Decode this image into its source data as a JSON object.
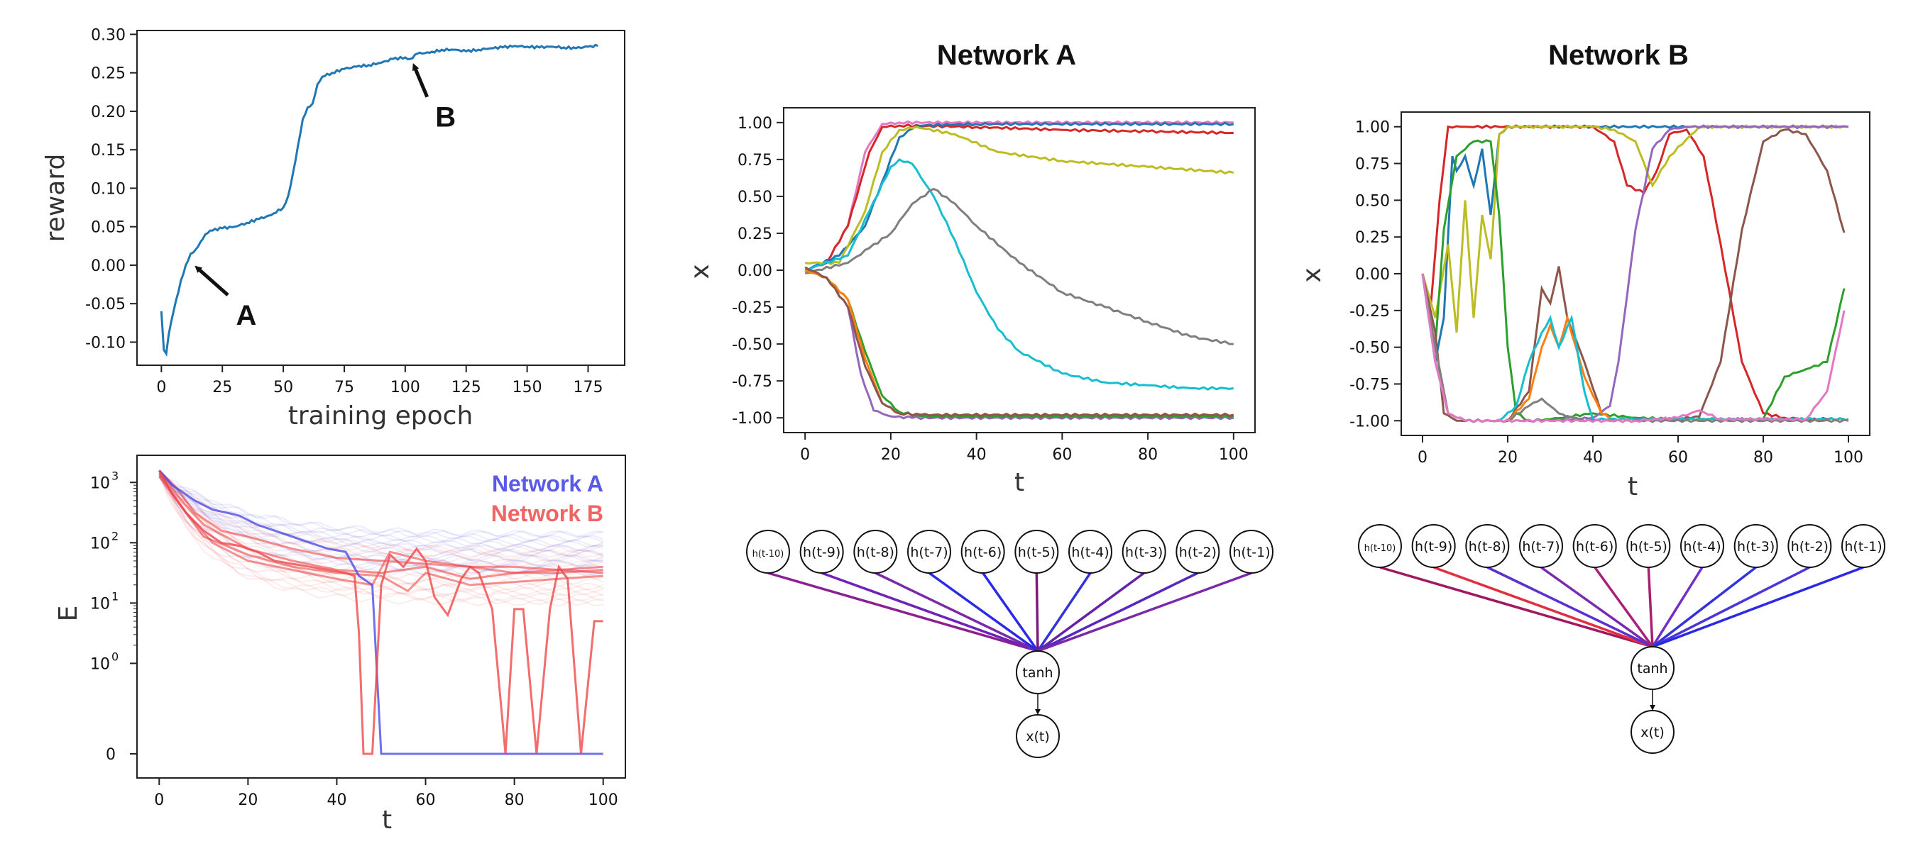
{
  "chart_data": [
    {
      "id": "reward",
      "type": "line",
      "xlabel": "training epoch",
      "ylabel": "reward",
      "xlim": [
        -10,
        190
      ],
      "ylim": [
        -0.13,
        0.305
      ],
      "xticks": [
        "0",
        "25",
        "50",
        "75",
        "100",
        "125",
        "150",
        "175"
      ],
      "yticks": [
        "-0.10",
        "-0.05",
        "0.00",
        "0.05",
        "0.10",
        "0.15",
        "0.20",
        "0.25",
        "0.30"
      ],
      "color": "#1f77b4",
      "x": [
        0,
        1,
        2,
        3,
        5,
        8,
        10,
        12,
        14,
        16,
        18,
        20,
        25,
        30,
        35,
        40,
        45,
        50,
        52,
        54,
        56,
        58,
        60,
        62,
        64,
        66,
        70,
        75,
        80,
        85,
        90,
        95,
        100,
        102,
        105,
        110,
        115,
        120,
        125,
        130,
        135,
        140,
        145,
        150,
        155,
        160,
        165,
        170,
        175,
        179
      ],
      "y": [
        -0.06,
        -0.11,
        -0.115,
        -0.09,
        -0.06,
        -0.02,
        0.0,
        0.015,
        0.02,
        0.03,
        0.04,
        0.045,
        0.048,
        0.05,
        0.055,
        0.06,
        0.065,
        0.075,
        0.09,
        0.12,
        0.155,
        0.19,
        0.205,
        0.21,
        0.235,
        0.245,
        0.25,
        0.255,
        0.258,
        0.26,
        0.263,
        0.268,
        0.27,
        0.268,
        0.275,
        0.276,
        0.28,
        0.28,
        0.278,
        0.28,
        0.282,
        0.283,
        0.285,
        0.284,
        0.283,
        0.284,
        0.283,
        0.282,
        0.284,
        0.285
      ],
      "annotations": [
        {
          "label": "A",
          "x": 13,
          "y": 0.0
        },
        {
          "label": "B",
          "x": 102,
          "y": 0.262
        }
      ]
    },
    {
      "id": "energy",
      "type": "line",
      "yscale": "log",
      "xlabel": "t",
      "ylabel": "E",
      "xlim": [
        -5,
        105
      ],
      "xticks": [
        "0",
        "20",
        "40",
        "60",
        "80",
        "100"
      ],
      "yticks": [
        {
          "text": "10",
          "sup": "3"
        },
        {
          "text": "10",
          "sup": "2"
        },
        {
          "text": "10",
          "sup": "1"
        },
        {
          "text": "10",
          "sup": "0"
        },
        {
          "text": "0",
          "sup": ""
        }
      ],
      "legend": [
        "Network A",
        "Network B"
      ],
      "legend_position": "top-right",
      "colors": {
        "A": "#4d4de6",
        "B": "#f04848"
      },
      "series": [
        {
          "name": "Network A",
          "x": [
            0,
            3,
            8,
            12,
            18,
            22,
            28,
            32,
            38,
            42,
            45,
            48,
            50,
            55,
            60,
            70,
            80,
            90,
            100
          ],
          "logE": [
            3.2,
            2.95,
            2.7,
            2.55,
            2.45,
            2.3,
            2.15,
            2.05,
            1.9,
            1.85,
            1.45,
            1.3,
            -1.5,
            -1.5,
            -1.5,
            -1.5,
            -1.5,
            -1.5,
            -1.5
          ]
        },
        {
          "name": "Network B",
          "x": [
            0,
            3,
            6,
            10,
            14,
            18,
            22,
            26,
            30,
            34,
            38,
            42,
            44,
            45,
            46,
            48,
            50,
            52,
            55,
            58,
            60,
            62,
            65,
            68,
            70,
            72,
            75,
            78,
            80,
            82,
            85,
            88,
            90,
            92,
            95,
            98,
            100
          ],
          "logE": [
            3.2,
            2.8,
            2.5,
            2.2,
            2.0,
            1.95,
            1.85,
            1.7,
            1.65,
            1.6,
            1.55,
            1.5,
            1.45,
            0.5,
            -1.5,
            -1.5,
            1.3,
            1.8,
            1.6,
            1.9,
            1.7,
            1.1,
            0.8,
            1.4,
            1.6,
            1.5,
            0.9,
            -1.5,
            0.9,
            0.9,
            -1.5,
            0.9,
            1.6,
            1.4,
            -1.5,
            0.7,
            0.7
          ]
        }
      ]
    },
    {
      "id": "network_a",
      "type": "line",
      "title": "Network A",
      "xlabel": "t",
      "ylabel": "x",
      "xlim": [
        -5,
        105
      ],
      "ylim": [
        -1.1,
        1.1
      ],
      "xticks": [
        "0",
        "20",
        "40",
        "60",
        "80",
        "100"
      ],
      "yticks": [
        "-1.00",
        "-0.75",
        "-0.50",
        "-0.25",
        "0.00",
        "0.25",
        "0.50",
        "0.75",
        "1.00"
      ],
      "series": [
        {
          "color": "#e377c2",
          "x": [
            0,
            5,
            10,
            14,
            18,
            22,
            100
          ],
          "y": [
            0.0,
            0.05,
            0.3,
            0.8,
            0.99,
            1.0,
            1.0
          ]
        },
        {
          "color": "#d62728",
          "x": [
            0,
            5,
            10,
            15,
            18,
            22,
            40,
            60,
            80,
            100
          ],
          "y": [
            0.0,
            0.05,
            0.3,
            0.8,
            0.97,
            0.98,
            0.97,
            0.95,
            0.94,
            0.93
          ]
        },
        {
          "color": "#1f77b4",
          "x": [
            0,
            8,
            14,
            18,
            22,
            26,
            40,
            100
          ],
          "y": [
            0.0,
            0.1,
            0.3,
            0.6,
            0.9,
            0.98,
            0.99,
            0.99
          ]
        },
        {
          "color": "#bcbd22",
          "x": [
            0,
            8,
            14,
            18,
            22,
            26,
            35,
            45,
            60,
            80,
            100
          ],
          "y": [
            0.05,
            0.05,
            0.4,
            0.8,
            0.95,
            0.97,
            0.92,
            0.8,
            0.74,
            0.7,
            0.66
          ]
        },
        {
          "color": "#17becf",
          "x": [
            0,
            10,
            15,
            20,
            22,
            25,
            30,
            35,
            40,
            45,
            50,
            60,
            70,
            80,
            90,
            100
          ],
          "y": [
            0.0,
            0.1,
            0.4,
            0.7,
            0.75,
            0.72,
            0.5,
            0.2,
            -0.15,
            -0.4,
            -0.55,
            -0.7,
            -0.76,
            -0.78,
            -0.8,
            -0.8
          ]
        },
        {
          "color": "#7f7f7f",
          "x": [
            0,
            10,
            15,
            20,
            25,
            30,
            35,
            40,
            50,
            60,
            70,
            80,
            90,
            100
          ],
          "y": [
            -0.02,
            0.05,
            0.15,
            0.25,
            0.45,
            0.55,
            0.45,
            0.3,
            0.05,
            -0.15,
            -0.25,
            -0.35,
            -0.45,
            -0.5
          ]
        },
        {
          "color": "#9467bd",
          "x": [
            0,
            5,
            10,
            13,
            16,
            20,
            25,
            100
          ],
          "y": [
            0.0,
            -0.05,
            -0.25,
            -0.7,
            -0.95,
            -0.99,
            -1.0,
            -1.0
          ]
        },
        {
          "color": "#2ca02c",
          "x": [
            0,
            5,
            10,
            14,
            18,
            22,
            27,
            100
          ],
          "y": [
            0.0,
            -0.05,
            -0.2,
            -0.55,
            -0.85,
            -0.96,
            -0.99,
            -0.99
          ]
        },
        {
          "color": "#ff7f0e",
          "x": [
            0,
            5,
            10,
            14,
            18,
            22,
            27,
            100
          ],
          "y": [
            0.0,
            -0.05,
            -0.2,
            -0.6,
            -0.9,
            -0.97,
            -0.98,
            -0.98
          ]
        },
        {
          "color": "#8c564b",
          "x": [
            0,
            5,
            10,
            14,
            18,
            22,
            27,
            100
          ],
          "y": [
            0.02,
            -0.05,
            -0.25,
            -0.65,
            -0.9,
            -0.97,
            -0.98,
            -0.98
          ]
        }
      ]
    },
    {
      "id": "network_b",
      "type": "line",
      "title": "Network B",
      "xlabel": "t",
      "ylabel": "x",
      "xlim": [
        -5,
        105
      ],
      "ylim": [
        -1.1,
        1.1
      ],
      "xticks": [
        "0",
        "20",
        "40",
        "60",
        "80",
        "100"
      ],
      "yticks": [
        "-1.00",
        "-0.75",
        "-0.50",
        "-0.25",
        "0.00",
        "0.25",
        "0.50",
        "0.75",
        "1.00"
      ],
      "series": [
        {
          "color": "#1f77b4",
          "x": [
            0,
            3,
            5,
            7,
            8,
            10,
            12,
            14,
            16,
            18,
            20,
            25,
            100
          ],
          "y": [
            0.0,
            -0.6,
            -0.3,
            0.8,
            0.7,
            0.8,
            0.6,
            0.85,
            0.4,
            0.95,
            1.0,
            1.0,
            1.0
          ]
        },
        {
          "color": "#d62728",
          "x": [
            0,
            2,
            4,
            6,
            10,
            40,
            45,
            48,
            52,
            55,
            58,
            62,
            66,
            70,
            75,
            80,
            85,
            90,
            95,
            99
          ],
          "y": [
            0.0,
            -0.2,
            0.5,
            1.0,
            1.0,
            1.0,
            0.9,
            0.6,
            0.55,
            0.7,
            0.95,
            0.98,
            0.8,
            0.2,
            -0.6,
            -0.95,
            -0.98,
            -0.99,
            -0.99,
            -0.99
          ]
        },
        {
          "color": "#bcbd22",
          "x": [
            0,
            3,
            6,
            8,
            10,
            12,
            14,
            16,
            18,
            20,
            40,
            45,
            50,
            54,
            58,
            65,
            100
          ],
          "y": [
            0.0,
            -0.3,
            0.2,
            -0.4,
            0.5,
            -0.3,
            0.4,
            0.1,
            0.95,
            1.0,
            1.0,
            0.98,
            0.9,
            0.6,
            0.8,
            1.0,
            1.0
          ]
        },
        {
          "color": "#2ca02c",
          "x": [
            0,
            3,
            5,
            8,
            12,
            16,
            18,
            20,
            22,
            25,
            30,
            40,
            50,
            60,
            70,
            80,
            85,
            90,
            95,
            99
          ],
          "y": [
            0.0,
            -0.5,
            0.3,
            0.8,
            0.9,
            0.9,
            0.4,
            -0.5,
            -0.95,
            -1.0,
            -0.99,
            -0.95,
            -0.98,
            -0.99,
            -0.99,
            -0.99,
            -0.7,
            -0.65,
            -0.6,
            -0.1
          ]
        },
        {
          "color": "#8c564b",
          "x": [
            0,
            3,
            5,
            8,
            20,
            25,
            28,
            30,
            32,
            34,
            38,
            42,
            45,
            50,
            55,
            60,
            65,
            70,
            75,
            80,
            85,
            90,
            95,
            99
          ],
          "y": [
            0.0,
            -0.4,
            -0.95,
            -1.0,
            -1.0,
            -0.8,
            -0.1,
            -0.2,
            0.05,
            -0.3,
            -0.6,
            -0.95,
            -0.99,
            -0.99,
            -0.99,
            -0.99,
            -0.97,
            -0.6,
            0.3,
            0.9,
            0.98,
            0.95,
            0.7,
            0.28
          ]
        },
        {
          "color": "#9467bd",
          "x": [
            0,
            3,
            6,
            10,
            30,
            40,
            44,
            46,
            50,
            54,
            58,
            62,
            100
          ],
          "y": [
            0.0,
            -0.6,
            -0.95,
            -1.0,
            -1.0,
            -0.98,
            -0.9,
            -0.6,
            0.3,
            0.85,
            0.98,
            1.0,
            1.0
          ]
        },
        {
          "color": "#ff7f0e",
          "x": [
            0,
            3,
            6,
            10,
            20,
            25,
            28,
            30,
            32,
            34,
            38,
            42,
            45,
            100
          ],
          "y": [
            0.0,
            -0.5,
            -0.95,
            -1.0,
            -1.0,
            -0.85,
            -0.5,
            -0.35,
            -0.5,
            -0.3,
            -0.7,
            -0.95,
            -0.99,
            -0.99
          ]
        },
        {
          "color": "#17becf",
          "x": [
            0,
            3,
            6,
            10,
            18,
            22,
            25,
            28,
            30,
            32,
            35,
            38,
            40,
            100
          ],
          "y": [
            0.0,
            -0.6,
            -0.95,
            -1.0,
            -1.0,
            -0.9,
            -0.6,
            -0.4,
            -0.3,
            -0.5,
            -0.3,
            -0.8,
            -0.99,
            -0.99
          ]
        },
        {
          "color": "#7f7f7f",
          "x": [
            0,
            3,
            6,
            10,
            20,
            25,
            28,
            32,
            36,
            40,
            100
          ],
          "y": [
            0.0,
            -0.5,
            -0.95,
            -1.0,
            -1.0,
            -0.9,
            -0.85,
            -0.95,
            -0.99,
            -1.0,
            -1.0
          ]
        },
        {
          "color": "#e377c2",
          "x": [
            0,
            3,
            6,
            10,
            50,
            60,
            65,
            70,
            80,
            90,
            95,
            99
          ],
          "y": [
            0.0,
            -0.6,
            -0.95,
            -1.0,
            -1.0,
            -0.98,
            -0.93,
            -0.99,
            -0.99,
            -0.99,
            -0.8,
            -0.25
          ]
        }
      ]
    }
  ],
  "diagrams": [
    {
      "id": "diagram_a",
      "inputs": [
        "h(t-10)",
        "h(t-9)",
        "h(t-8)",
        "h(t-7)",
        "h(t-6)",
        "h(t-5)",
        "h(t-4)",
        "h(t-3)",
        "h(t-2)",
        "h(t-1)"
      ],
      "edge_colors": [
        "#8b2090",
        "#6f22b8",
        "#7a2aa8",
        "#2a2ae6",
        "#2a2ae6",
        "#7a1a78",
        "#3333dd",
        "#6620aa",
        "#5528c0",
        "#7a2aa8"
      ],
      "hidden": "tanh",
      "output": "x(t)"
    },
    {
      "id": "diagram_b",
      "inputs": [
        "h(t-10)",
        "h(t-9)",
        "h(t-8)",
        "h(t-7)",
        "h(t-6)",
        "h(t-5)",
        "h(t-4)",
        "h(t-3)",
        "h(t-2)",
        "h(t-1)"
      ],
      "edge_colors": [
        "#a01860",
        "#e03040",
        "#5a30d0",
        "#7a28b0",
        "#a82078",
        "#a82070",
        "#7030c8",
        "#3333dd",
        "#4a36d8",
        "#2a2ae6"
      ],
      "hidden": "tanh",
      "output": "x(t)"
    }
  ]
}
